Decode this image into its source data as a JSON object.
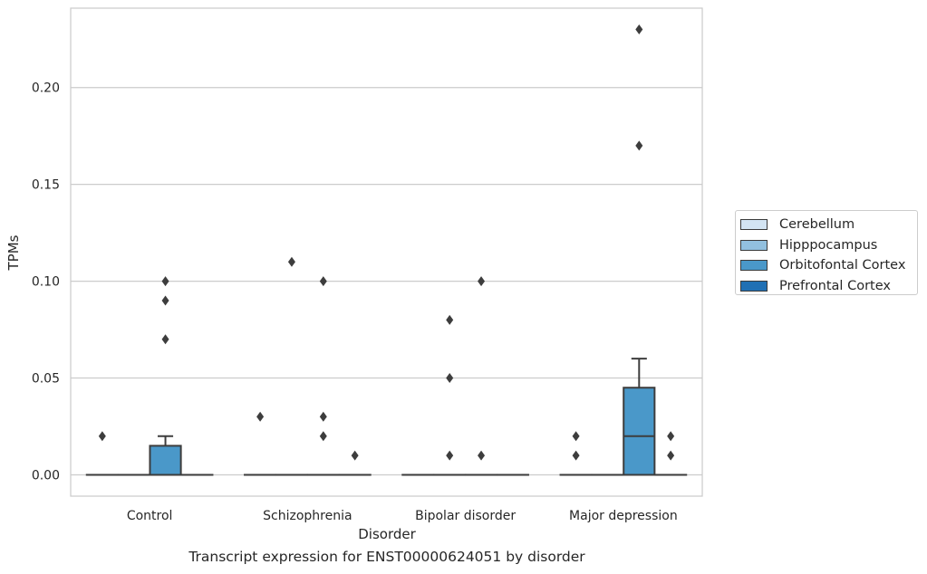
{
  "caption": "Transcript expression for ENST00000624051 by disorder",
  "chart_data": {
    "type": "box",
    "xlabel": "Disorder",
    "ylabel": "TPMs",
    "categories": [
      "Control",
      "Schizophrenia",
      "Bipolar disorder",
      "Major depression"
    ],
    "hue_order": [
      "Cerebellum",
      "Hipppocampus",
      "Orbitofontal Cortex",
      "Prefrontal Cortex"
    ],
    "colors": {
      "Cerebellum": "#d3e4f3",
      "Hipppocampus": "#92c0df",
      "Orbitofontal Cortex": "#4a98c9",
      "Prefrontal Cortex": "#2070b4"
    },
    "ylim": [
      -0.011,
      0.241
    ],
    "yticks": [
      0.0,
      0.05,
      0.1,
      0.15,
      0.2
    ],
    "ytick_labels": [
      "0.00",
      "0.05",
      "0.10",
      "0.15",
      "0.20"
    ],
    "grid": "horizontal",
    "legend_position": "right, outside plot",
    "boxes": [
      {
        "category": "Control",
        "hue": "Cerebellum",
        "q1": 0,
        "median": 0,
        "q3": 0,
        "whisker_low": 0,
        "whisker_high": 0,
        "outliers": [
          0.02
        ]
      },
      {
        "category": "Control",
        "hue": "Hipppocampus",
        "q1": 0,
        "median": 0,
        "q3": 0,
        "whisker_low": 0,
        "whisker_high": 0,
        "outliers": []
      },
      {
        "category": "Control",
        "hue": "Orbitofontal Cortex",
        "q1": 0,
        "median": 0,
        "q3": 0.015,
        "whisker_low": 0,
        "whisker_high": 0.02,
        "outliers": [
          0.07,
          0.09,
          0.1
        ]
      },
      {
        "category": "Control",
        "hue": "Prefrontal Cortex",
        "q1": 0,
        "median": 0,
        "q3": 0,
        "whisker_low": 0,
        "whisker_high": 0,
        "outliers": []
      },
      {
        "category": "Schizophrenia",
        "hue": "Cerebellum",
        "q1": 0,
        "median": 0,
        "q3": 0,
        "whisker_low": 0,
        "whisker_high": 0,
        "outliers": [
          0.03
        ]
      },
      {
        "category": "Schizophrenia",
        "hue": "Hipppocampus",
        "q1": 0,
        "median": 0,
        "q3": 0,
        "whisker_low": 0,
        "whisker_high": 0,
        "outliers": [
          0.11
        ]
      },
      {
        "category": "Schizophrenia",
        "hue": "Orbitofontal Cortex",
        "q1": 0,
        "median": 0,
        "q3": 0,
        "whisker_low": 0,
        "whisker_high": 0,
        "outliers": [
          0.02,
          0.03,
          0.1
        ]
      },
      {
        "category": "Schizophrenia",
        "hue": "Prefrontal Cortex",
        "q1": 0,
        "median": 0,
        "q3": 0,
        "whisker_low": 0,
        "whisker_high": 0,
        "outliers": [
          0.01
        ]
      },
      {
        "category": "Bipolar disorder",
        "hue": "Cerebellum",
        "q1": 0,
        "median": 0,
        "q3": 0,
        "whisker_low": 0,
        "whisker_high": 0,
        "outliers": []
      },
      {
        "category": "Bipolar disorder",
        "hue": "Hipppocampus",
        "q1": 0,
        "median": 0,
        "q3": 0,
        "whisker_low": 0,
        "whisker_high": 0,
        "outliers": [
          0.01,
          0.05,
          0.08
        ]
      },
      {
        "category": "Bipolar disorder",
        "hue": "Orbitofontal Cortex",
        "q1": 0,
        "median": 0,
        "q3": 0,
        "whisker_low": 0,
        "whisker_high": 0,
        "outliers": [
          0.01,
          0.1
        ]
      },
      {
        "category": "Bipolar disorder",
        "hue": "Prefrontal Cortex",
        "q1": 0,
        "median": 0,
        "q3": 0,
        "whisker_low": 0,
        "whisker_high": 0,
        "outliers": []
      },
      {
        "category": "Major depression",
        "hue": "Cerebellum",
        "q1": 0,
        "median": 0,
        "q3": 0,
        "whisker_low": 0,
        "whisker_high": 0,
        "outliers": [
          0.01,
          0.02
        ]
      },
      {
        "category": "Major depression",
        "hue": "Hipppocampus",
        "q1": 0,
        "median": 0,
        "q3": 0,
        "whisker_low": 0,
        "whisker_high": 0,
        "outliers": []
      },
      {
        "category": "Major depression",
        "hue": "Orbitofontal Cortex",
        "q1": 0,
        "median": 0.02,
        "q3": 0.045,
        "whisker_low": 0,
        "whisker_high": 0.06,
        "outliers": [
          0.17,
          0.23
        ]
      },
      {
        "category": "Major depression",
        "hue": "Prefrontal Cortex",
        "q1": 0,
        "median": 0,
        "q3": 0,
        "whisker_low": 0,
        "whisker_high": 0,
        "outliers": [
          0.01,
          0.02
        ]
      }
    ]
  }
}
